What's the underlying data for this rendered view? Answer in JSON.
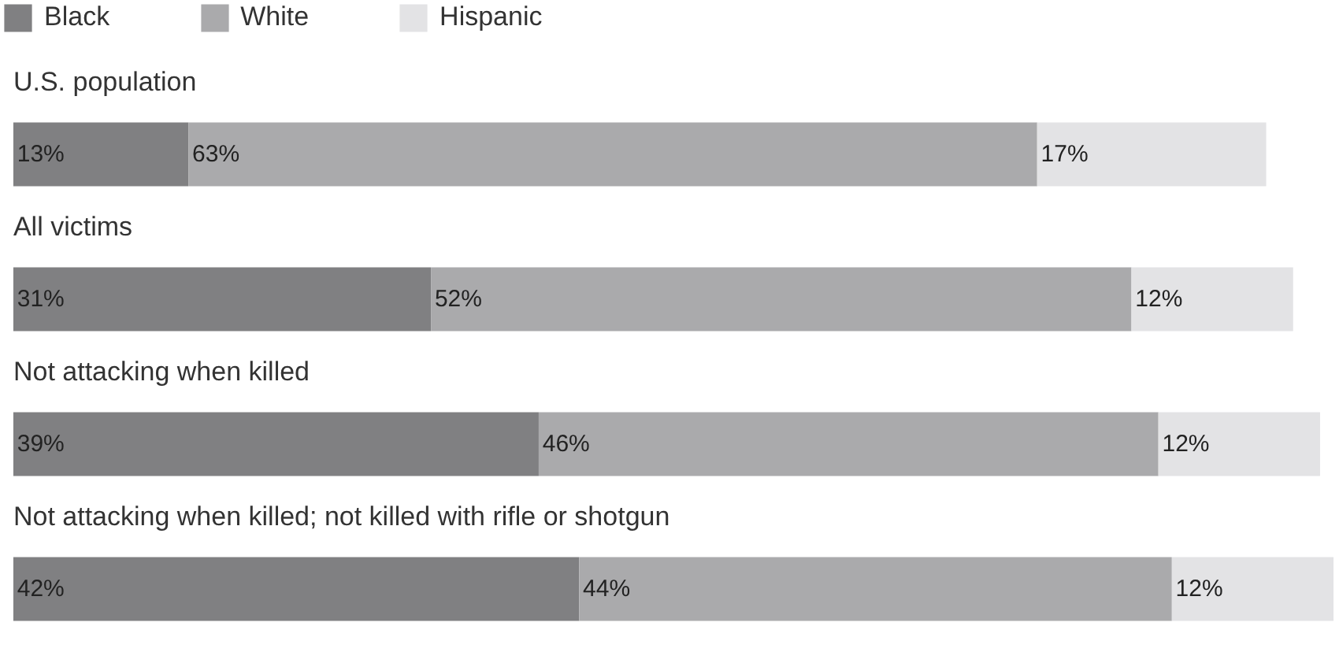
{
  "chart_data": {
    "type": "bar",
    "orientation": "horizontal",
    "stacked": true,
    "legend": "top left",
    "grid": false,
    "categories": [
      "U.S. population",
      "All victims",
      "Not attacking when killed",
      "Not attacking when killed; not killed with rifle or shotgun"
    ],
    "series": [
      {
        "name": "Black",
        "color": "#808082",
        "values": [
          13,
          31,
          39,
          42
        ],
        "value_labels": [
          "13%",
          "31%",
          "39%",
          "42%"
        ]
      },
      {
        "name": "White",
        "color": "#aaaaac",
        "values": [
          63,
          52,
          46,
          44
        ],
        "value_labels": [
          "63%",
          "52%",
          "46%",
          "44%"
        ]
      },
      {
        "name": "Hispanic",
        "color": "#e3e3e5",
        "values": [
          17,
          12,
          12,
          12
        ],
        "value_labels": [
          "17%",
          "12%",
          "12%",
          "12%"
        ]
      }
    ]
  }
}
